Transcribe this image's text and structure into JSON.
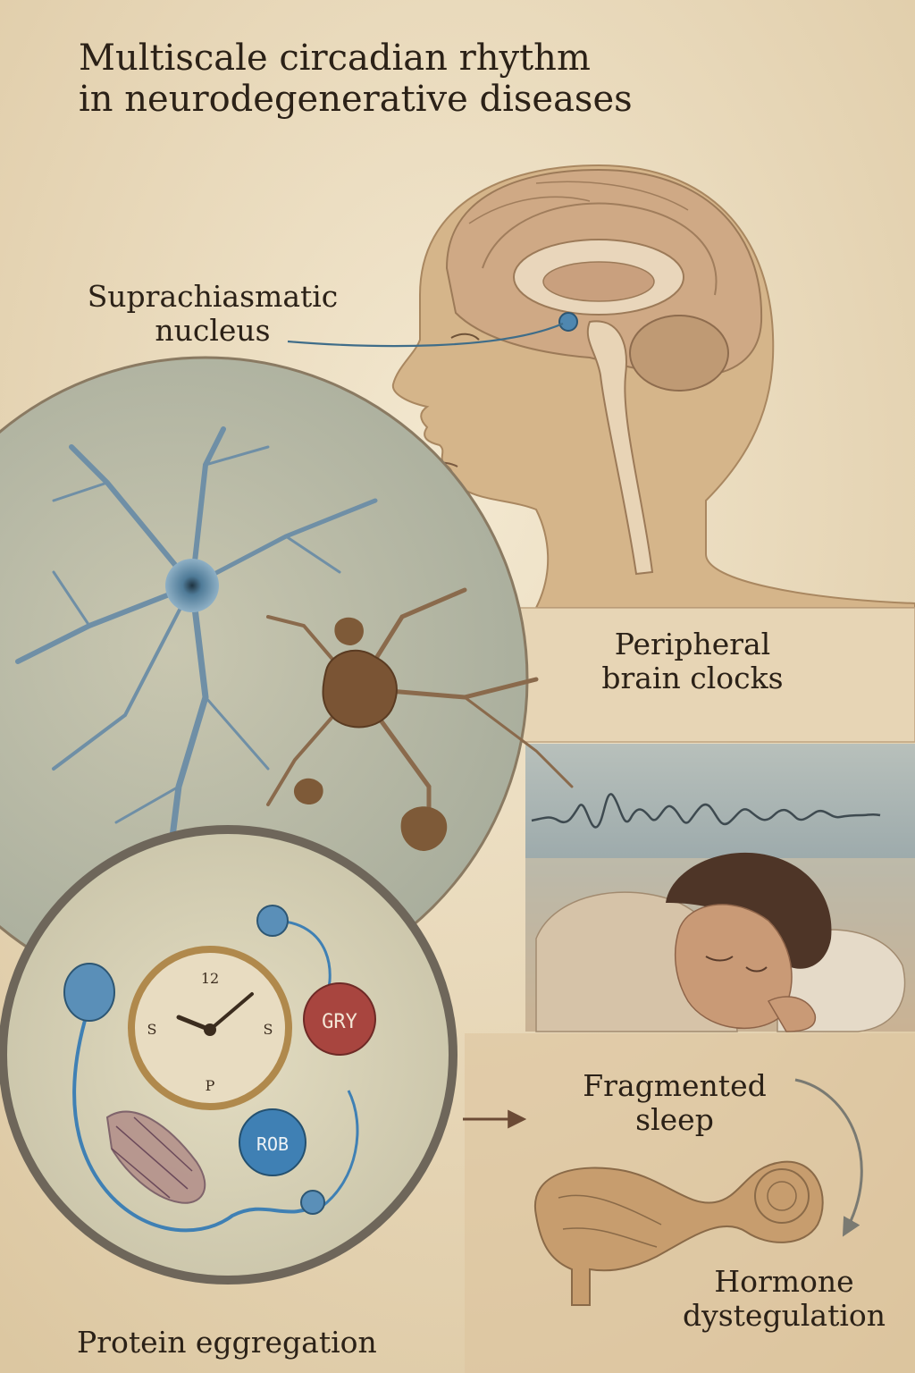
{
  "title": {
    "line1": "Multiscale circadian rhythm",
    "line2": "in neurodegenerative diseases"
  },
  "labels": {
    "scn": {
      "line1": "Suprachiasmatic",
      "line2": "nucleus"
    },
    "peripheral": {
      "line1": "Peripheral",
      "line2": "brain clocks"
    },
    "fragmented": {
      "line1": "Fragmented",
      "line2": "sleep"
    },
    "hormone": {
      "line1": "Hormone",
      "line2": "dystegulation"
    },
    "protein": "Protein eggregation"
  },
  "molecules": {
    "red": "GRY",
    "blue": "ROB"
  },
  "clock_numerals": {
    "n12": "12",
    "n9": "S",
    "n3": "S",
    "n6": "P"
  },
  "colors": {
    "parchment": "#eadcbf",
    "skin": "#d8b88c",
    "ink": "#2b2117",
    "neuron_blue": "#6f8fa6",
    "aggregate_brown": "#7a5434",
    "red_molecule": "#a8453f",
    "blue_molecule": "#3f80b4",
    "sepia_arrow": "#6b4a35"
  }
}
